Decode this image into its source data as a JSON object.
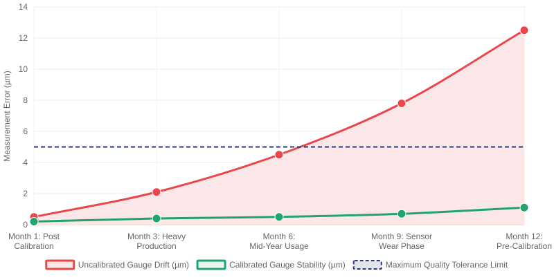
{
  "chart_data": {
    "type": "line",
    "title": "",
    "xlabel": "",
    "ylabel": "Measurement Error (µm)",
    "ylim": [
      0,
      14
    ],
    "yticks": [
      0,
      2,
      4,
      6,
      8,
      10,
      12,
      14
    ],
    "grid": true,
    "legend_position": "bottom",
    "categories": [
      [
        "Month 1: Post",
        "Calibration"
      ],
      [
        "Month 3: Heavy",
        "Production"
      ],
      [
        "Month 6:",
        "Mid-Year Usage"
      ],
      [
        "Month 9: Sensor",
        "Wear Phase"
      ],
      [
        "Month 12:",
        "Pre-Calibration"
      ]
    ],
    "series": [
      {
        "name": "Uncalibrated Gauge Drift (µm)",
        "values": [
          0.5,
          2.1,
          4.5,
          7.8,
          12.5
        ],
        "color": "#e8474c",
        "fill": "#fbe7e8",
        "filled": true,
        "dashed": false
      },
      {
        "name": "Calibrated Gauge Stability (µm)",
        "values": [
          0.2,
          0.4,
          0.5,
          0.7,
          1.1
        ],
        "color": "#23a46e",
        "fill": "#e6f5ee",
        "filled": false,
        "dashed": false
      },
      {
        "name": "Maximum Quality Tolerance Limit",
        "values": [
          5,
          5,
          5,
          5,
          5
        ],
        "color": "#2a3a7a",
        "fill": "#e4e5ea",
        "filled": false,
        "dashed": true
      }
    ]
  }
}
